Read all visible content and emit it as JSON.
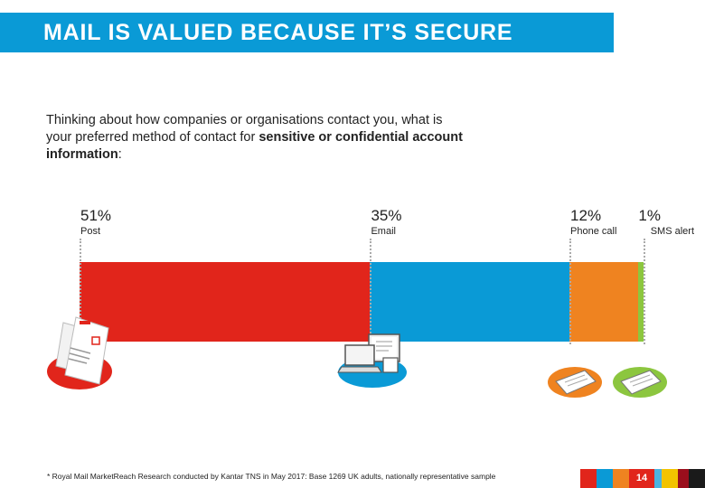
{
  "header": {
    "title": "MAIL IS VALUED BECAUSE IT’S SECURE"
  },
  "question": {
    "part1": "Thinking about how companies or organisations contact you, what is your preferred method of contact for ",
    "emphasis": "sensitive or confidential account information",
    "part2": ":"
  },
  "chart_data": {
    "type": "bar",
    "orientation": "horizontal-stacked",
    "categories": [
      "Post",
      "Email",
      "Phone call",
      "SMS alert"
    ],
    "values": [
      51,
      35,
      12,
      1
    ],
    "value_labels": [
      "51%",
      "35%",
      "12%",
      "1%"
    ],
    "colors": [
      "#e1251b",
      "#0a9ad6",
      "#ef8320",
      "#8cc63f"
    ],
    "xlabel": "",
    "ylabel": "",
    "legend": "none",
    "grid": false
  },
  "footer": {
    "note": "* Royal Mail MarketReach Research conducted by Kantar TNS in May 2017: Base 1269 UK adults, nationally representative sample",
    "page_number": "14",
    "strip_colors": [
      "#e1251b",
      "#0a9ad6",
      "#ef8320",
      "#8cc63f",
      "#4bb3e0",
      "#f2c300",
      "#9a0e1c"
    ]
  }
}
